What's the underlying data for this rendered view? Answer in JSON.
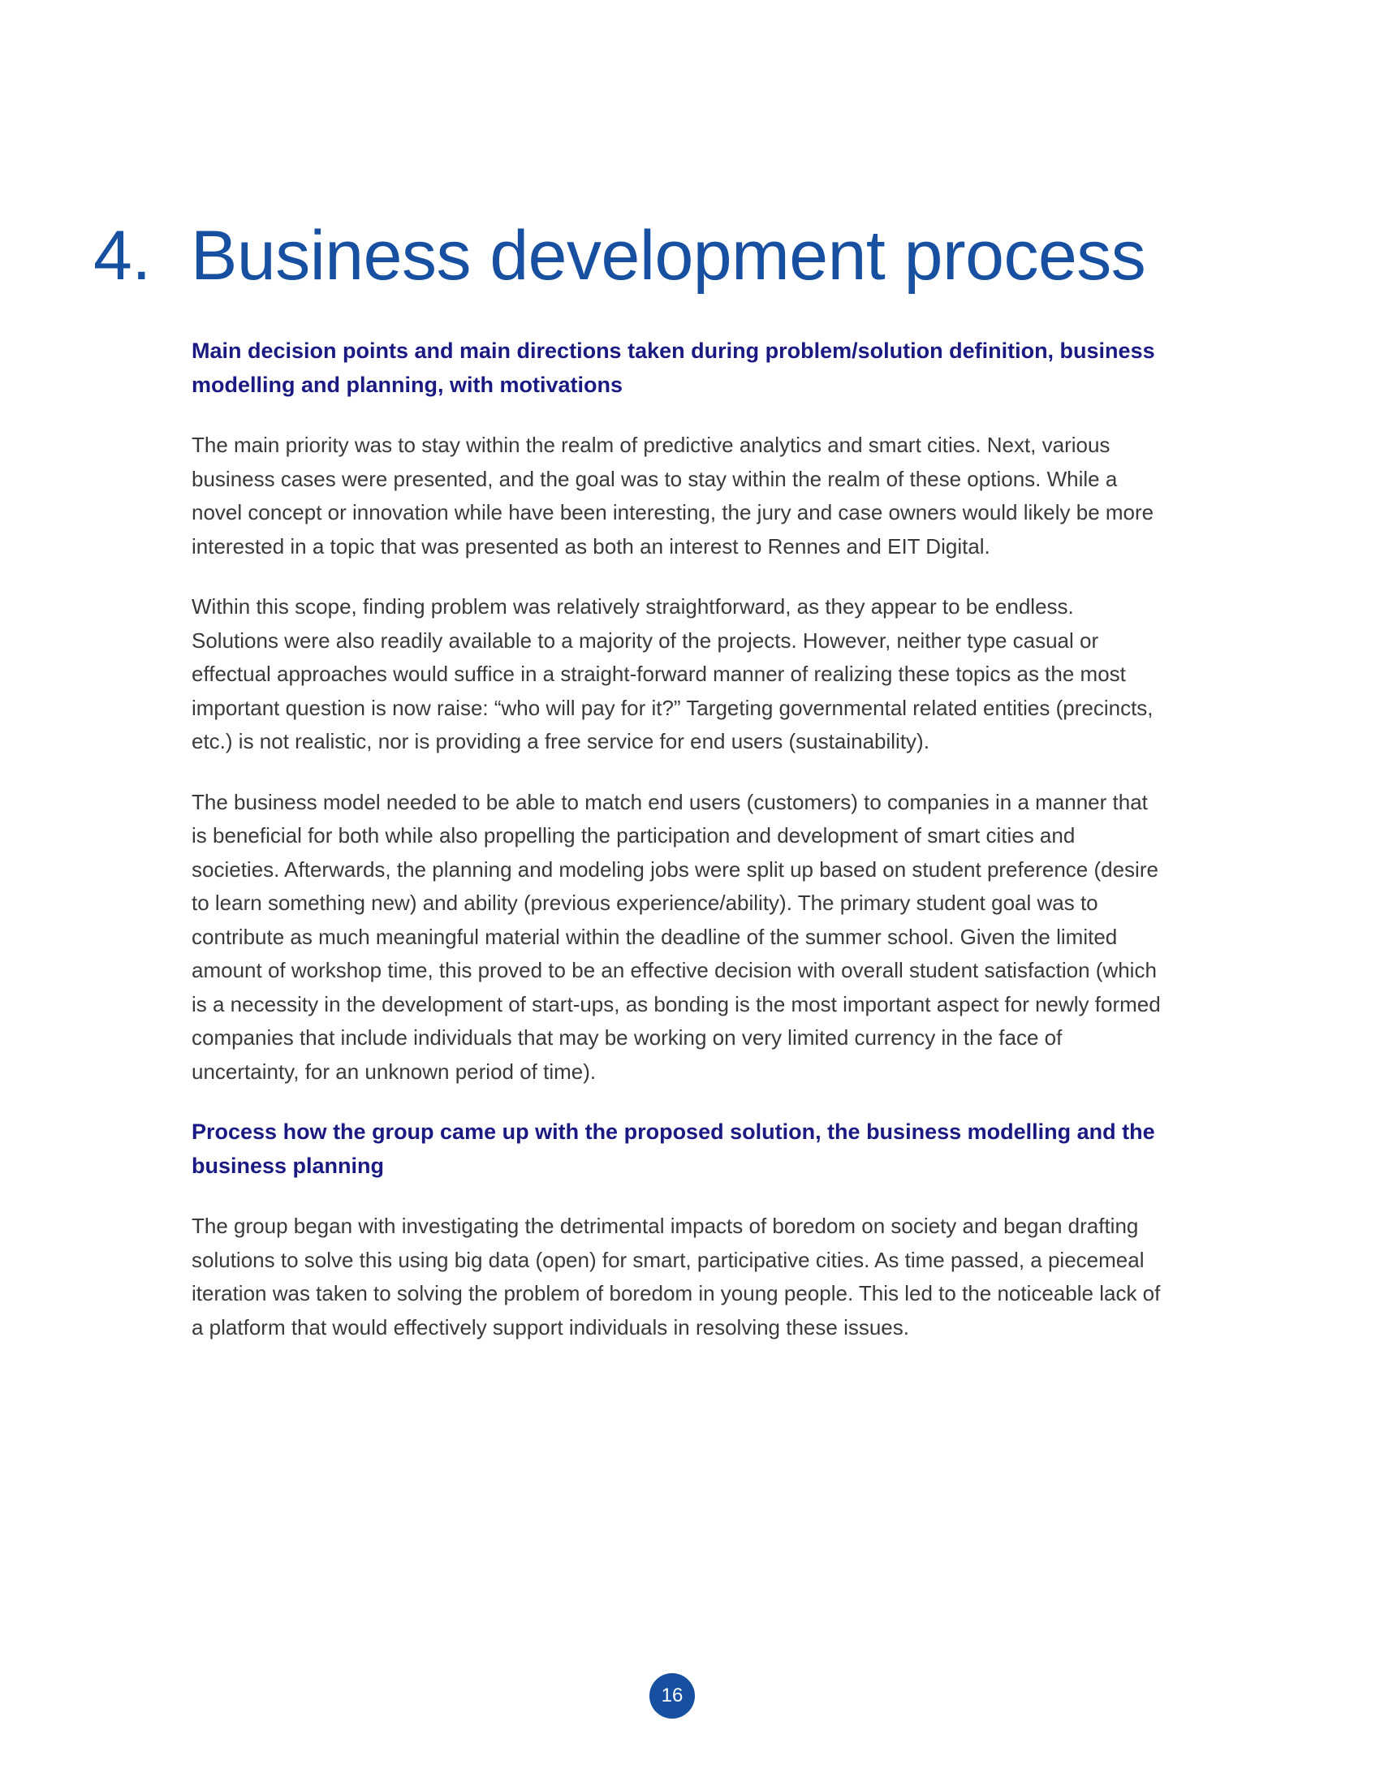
{
  "chapter": {
    "number": "4.",
    "title": "Business development process"
  },
  "sections": [
    {
      "heading": "Main decision points and main directions taken during problem/solution definition, business modelling and planning, with motivations",
      "paragraphs": [
        "The main priority was to stay within the realm of predictive analytics and smart cities. Next, various business cases were presented, and the goal was to stay within the realm of these options. While a novel concept or innovation while have been interesting, the jury and case owners would likely be more interested in a topic that was presented as both an interest to Rennes and EIT Digital.",
        "Within this scope, finding problem was relatively straightforward, as they appear to be endless. Solutions were also readily available to a majority of the projects. However, neither type casual or effectual approaches would suffice in a straight-forward manner of realizing these topics as the most important question is now raise: “who will pay for it?” Targeting governmental related entities (precincts, etc.) is not realistic, nor is providing a free service for end users (sustainability).",
        "The business model needed to be able to match end users (customers) to companies in a manner that is beneficial for both while also propelling the participation and development of smart cities and societies. Afterwards, the planning and modeling jobs were split up based on student preference (desire to learn something new) and ability (previous experience/ability). The primary student goal was to contribute as much meaningful material within the deadline of the summer school. Given the limited amount of workshop time, this proved to be an effective decision with overall student satisfaction (which is a necessity in the development of start-ups, as bonding is the most important aspect for newly formed companies that include individuals that may be working on very limited currency in the face of uncertainty, for an unknown period of time)."
      ]
    },
    {
      "heading": "Process how the group came up with the proposed solution, the business modelling and the business planning",
      "paragraphs": [
        "The group began with investigating the detrimental impacts of boredom on society and began drafting solutions to solve this using big data (open) for smart, participative cities. As time passed, a piecemeal iteration was taken to solving the problem of boredom in young people. This led to the noticeable lack of a platform that would effectively support individuals in resolving these issues."
      ]
    }
  ],
  "page_number": "16",
  "colors": {
    "title": "#1750a0",
    "subheading": "#1a1a82",
    "body_text": "#3a3a3a",
    "page_badge": "#1750a0"
  }
}
